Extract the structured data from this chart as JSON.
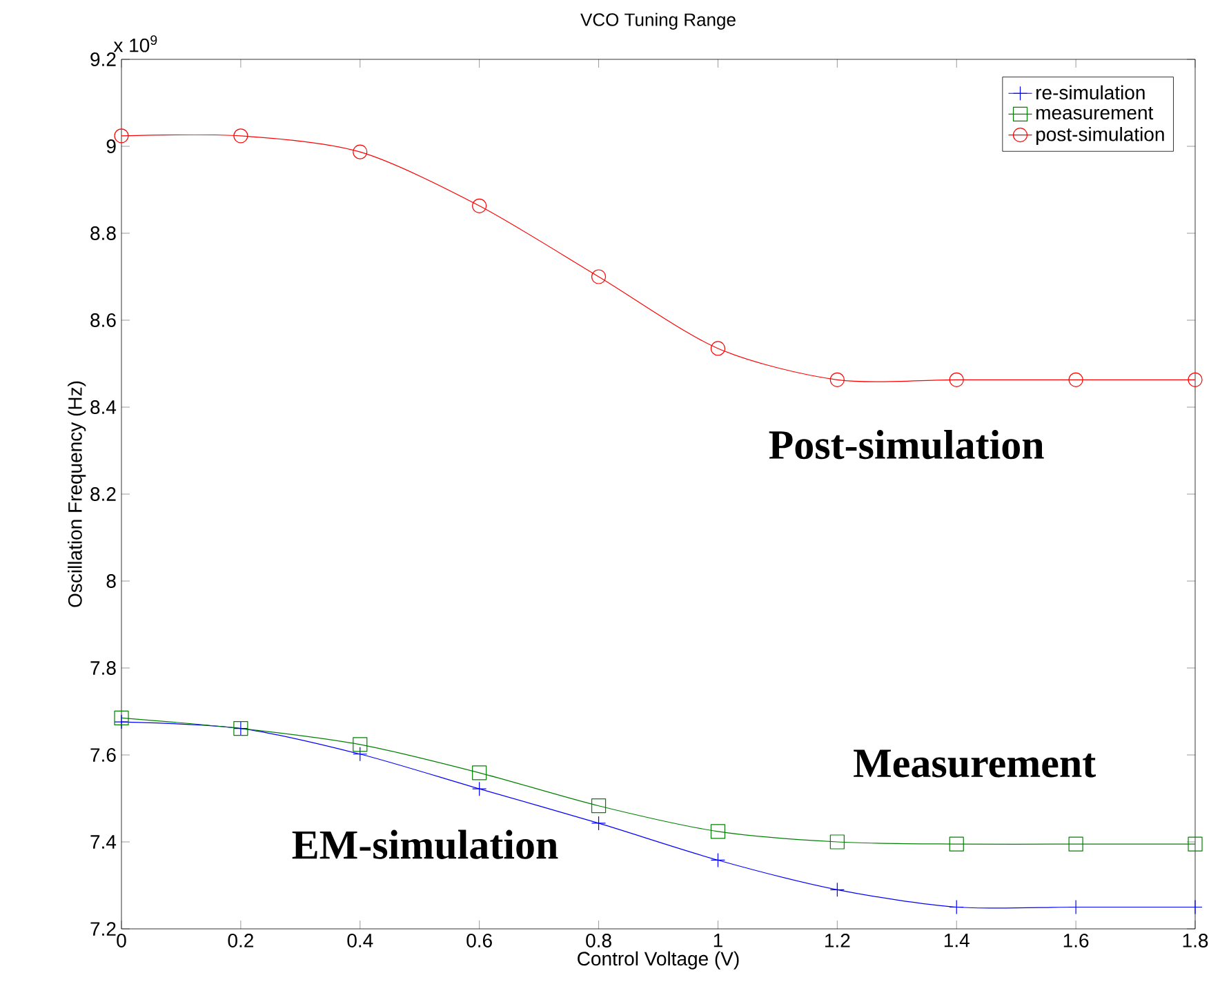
{
  "chart_data": {
    "type": "line",
    "title": "VCO Tuning Range",
    "xlabel": "Control Voltage (V)",
    "ylabel": "Oscillation Frequency (Hz)",
    "annotations": [
      "x 10$^{9}$",
      "Post-simulation",
      "Measurement",
      "EM-simulation"
    ],
    "x": [
      0,
      0.2,
      0.4,
      0.6,
      0.8,
      1,
      1.2,
      1.4,
      1.6,
      1.8
    ],
    "series": [
      {
        "name": "re-simulation",
        "color": "#0000ff",
        "marker": "cross",
        "values": [
          7.676,
          7.661,
          7.602,
          7.522,
          7.443,
          7.358,
          7.29,
          7.25,
          7.25,
          7.25
        ]
      },
      {
        "name": "measurement",
        "color": "#008000",
        "marker": "square",
        "values": [
          7.685,
          7.661,
          7.624,
          7.559,
          7.483,
          7.424,
          7.4,
          7.395,
          7.395,
          7.395
        ]
      },
      {
        "name": "post-simulation",
        "color": "#ff0000",
        "marker": "circle",
        "values": [
          9.024,
          9.024,
          8.987,
          8.863,
          8.7,
          8.535,
          8.463,
          8.463,
          8.463,
          8.463
        ]
      }
    ],
    "xlim": [
      0,
      1.8
    ],
    "ylim": [
      7.2,
      9.2
    ],
    "xticks": [
      0,
      0.2,
      0.4,
      0.6,
      0.8,
      1,
      1.2,
      1.4,
      1.6,
      1.8
    ],
    "yticks": [
      7.2,
      7.4,
      7.6,
      7.8,
      8,
      8.2,
      8.4,
      8.6,
      8.8,
      9,
      9.2
    ],
    "grid": false,
    "legend": "top right"
  }
}
